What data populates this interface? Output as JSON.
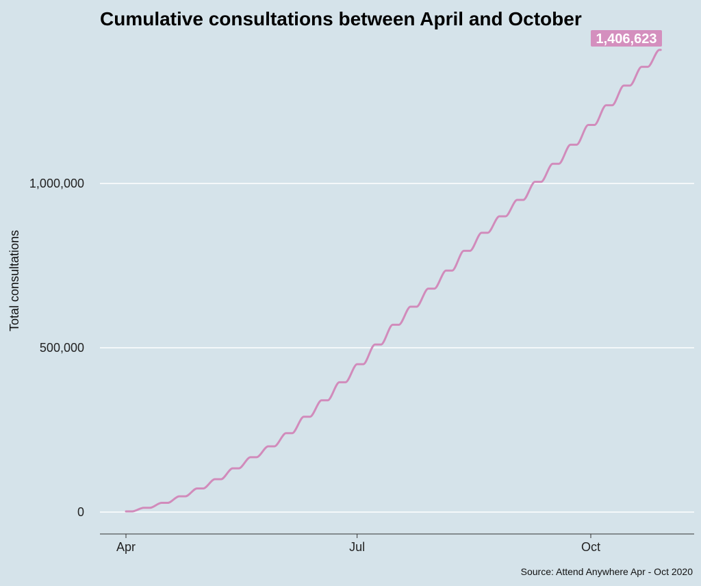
{
  "chart_data": {
    "type": "line",
    "title": "Cumulative consultations between April and October",
    "xlabel": "",
    "ylabel": "Total consultations",
    "caption": "Source: Attend Anywhere Apr - Oct 2020",
    "x_ticks": [
      "Apr",
      "Jul",
      "Oct"
    ],
    "y_ticks": [
      "0",
      "500,000",
      "1,000,000"
    ],
    "y_tick_values": [
      0,
      500000,
      1000000
    ],
    "ylim": [
      -65000,
      1500000
    ],
    "xlim": [
      "2020-03-22",
      "2020-11-07"
    ],
    "grid": "horizontal",
    "line_color": "#d18bbb",
    "end_label": "1,406,623",
    "end_label_color": "#d48fbe",
    "series": [
      {
        "x": [
          "2020-04-01",
          "2020-04-08",
          "2020-04-15",
          "2020-04-22",
          "2020-04-29",
          "2020-05-06",
          "2020-05-13",
          "2020-05-20",
          "2020-05-27",
          "2020-06-03",
          "2020-06-10",
          "2020-06-17",
          "2020-06-24",
          "2020-07-01",
          "2020-07-08",
          "2020-07-15",
          "2020-07-22",
          "2020-07-29",
          "2020-08-05",
          "2020-08-12",
          "2020-08-19",
          "2020-08-26",
          "2020-09-02",
          "2020-09-09",
          "2020-09-16",
          "2020-09-23",
          "2020-09-30",
          "2020-10-07",
          "2020-10-14",
          "2020-10-21",
          "2020-10-28"
        ],
        "values": [
          2000,
          13000,
          28000,
          48000,
          72000,
          100000,
          133000,
          167000,
          200000,
          240000,
          290000,
          340000,
          395000,
          450000,
          510000,
          570000,
          625000,
          680000,
          735000,
          795000,
          850000,
          900000,
          950000,
          1005000,
          1060000,
          1118000,
          1178000,
          1238000,
          1298000,
          1355000,
          1406623
        ]
      }
    ]
  }
}
